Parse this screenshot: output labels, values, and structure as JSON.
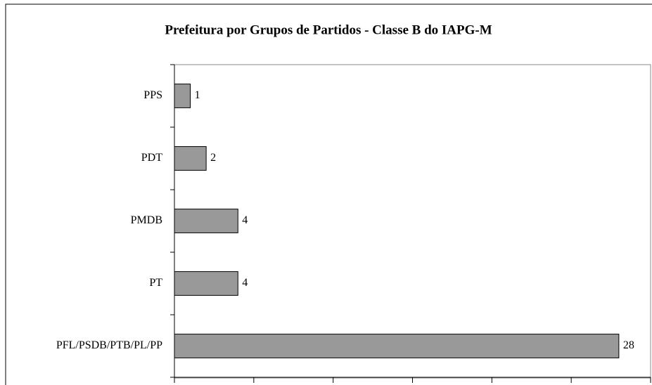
{
  "chart_data": {
    "type": "bar",
    "orientation": "horizontal",
    "title": "Prefeitura por Grupos de Partidos - Classe B do IAPG-M",
    "categories": [
      "PPS",
      "PDT",
      "PMDB",
      "PT",
      "PFL/PSDB/PTB/PL/PP"
    ],
    "values": [
      1,
      2,
      4,
      4,
      28
    ],
    "color": "#999999",
    "xlim": [
      0,
      30
    ],
    "xticks": [
      0,
      5,
      10,
      15,
      20,
      25,
      30
    ]
  }
}
